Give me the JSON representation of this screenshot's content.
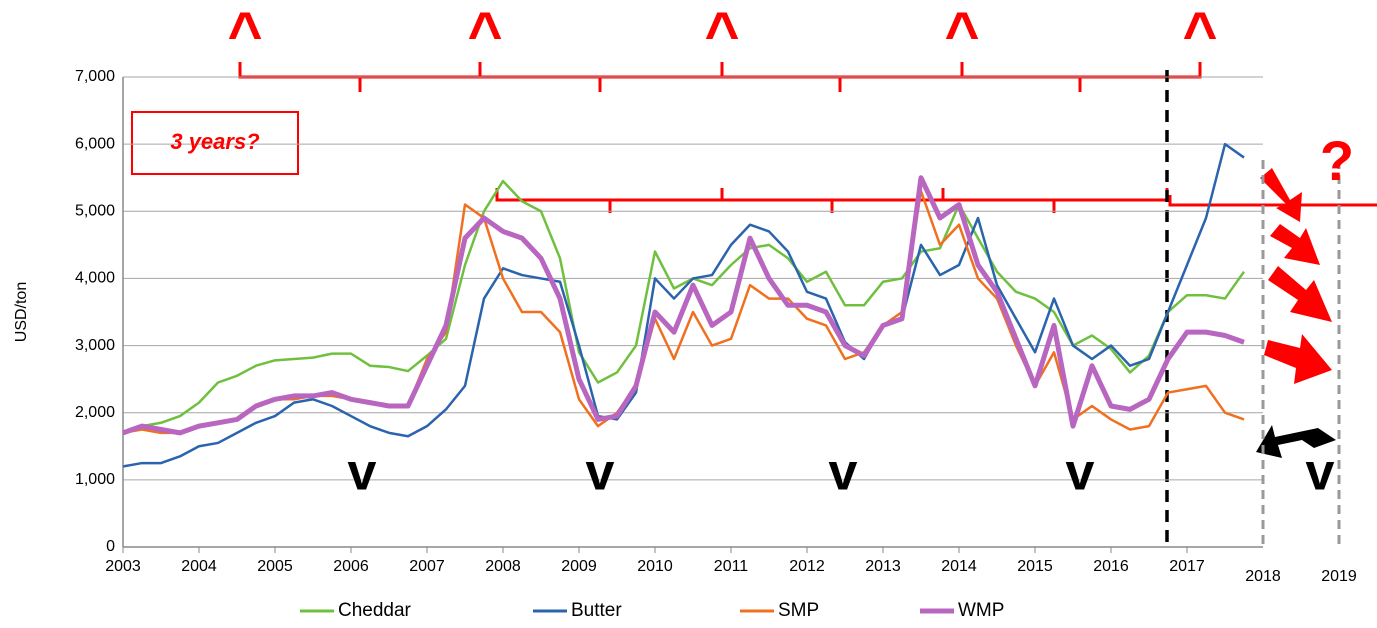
{
  "chart_data": {
    "type": "line",
    "ylabel": "USD/ton",
    "x": [
      2003,
      2003.25,
      2003.5,
      2003.75,
      2004,
      2004.25,
      2004.5,
      2004.75,
      2005,
      2005.25,
      2005.5,
      2005.75,
      2006,
      2006.25,
      2006.5,
      2006.75,
      2007,
      2007.25,
      2007.5,
      2007.75,
      2008,
      2008.25,
      2008.5,
      2008.75,
      2009,
      2009.25,
      2009.5,
      2009.75,
      2010,
      2010.25,
      2010.5,
      2010.75,
      2011,
      2011.25,
      2011.5,
      2011.75,
      2012,
      2012.25,
      2012.5,
      2012.75,
      2013,
      2013.25,
      2013.5,
      2013.75,
      2014,
      2014.25,
      2014.5,
      2014.75,
      2015,
      2015.25,
      2015.5,
      2015.75,
      2016,
      2016.25,
      2016.5,
      2016.75,
      2017,
      2017.25,
      2017.5,
      2017.75
    ],
    "series": [
      {
        "name": "Cheddar",
        "color": "#70c040",
        "values": [
          1700,
          1800,
          1850,
          1950,
          2150,
          2450,
          2550,
          2700,
          2780,
          2800,
          2820,
          2880,
          2880,
          2700,
          2680,
          2620,
          2850,
          3100,
          4200,
          5000,
          5450,
          5150,
          5000,
          4300,
          2900,
          2450,
          2600,
          3000,
          4400,
          3850,
          4000,
          3900,
          4200,
          4450,
          4500,
          4300,
          3950,
          4100,
          3600,
          3600,
          3950,
          4000,
          4400,
          4450,
          5100,
          4600,
          4100,
          3800,
          3700,
          3500,
          3000,
          3150,
          2950,
          2600,
          2850,
          3500,
          3750,
          3750,
          3700,
          4100
        ]
      },
      {
        "name": "Butter",
        "color": "#2a64ad",
        "values": [
          1200,
          1250,
          1250,
          1350,
          1500,
          1550,
          1700,
          1850,
          1950,
          2150,
          2200,
          2100,
          1950,
          1800,
          1700,
          1650,
          1800,
          2050,
          2400,
          3700,
          4150,
          4050,
          4000,
          3950,
          3000,
          1950,
          1900,
          2300,
          4000,
          3700,
          4000,
          4050,
          4500,
          4800,
          4700,
          4400,
          3800,
          3700,
          3050,
          2800,
          3300,
          3400,
          4500,
          4050,
          4200,
          4900,
          3900,
          3400,
          2900,
          3700,
          3000,
          2800,
          3000,
          2700,
          2800,
          3500,
          4200,
          4900,
          6000,
          5800
        ]
      },
      {
        "name": "SMP",
        "color": "#f07020",
        "values": [
          1700,
          1750,
          1700,
          1700,
          1800,
          1850,
          1900,
          2100,
          2200,
          2200,
          2250,
          2250,
          2200,
          2150,
          2100,
          2100,
          2800,
          3200,
          5100,
          4900,
          4000,
          3500,
          3500,
          3200,
          2200,
          1800,
          2000,
          2400,
          3400,
          2800,
          3500,
          3000,
          3100,
          3900,
          3700,
          3700,
          3400,
          3300,
          2800,
          2900,
          3300,
          3500,
          5300,
          4500,
          4800,
          4000,
          3700,
          3000,
          2400,
          2900,
          1900,
          2100,
          1900,
          1750,
          1800,
          2300,
          2350,
          2400,
          2000,
          1900
        ]
      },
      {
        "name": "WMP",
        "color": "#b866c0",
        "values": [
          1700,
          1800,
          1750,
          1700,
          1800,
          1850,
          1900,
          2100,
          2200,
          2250,
          2250,
          2300,
          2200,
          2150,
          2100,
          2100,
          2700,
          3300,
          4600,
          4900,
          4700,
          4600,
          4300,
          3700,
          2500,
          1900,
          1950,
          2400,
          3500,
          3200,
          3900,
          3300,
          3500,
          4600,
          4000,
          3600,
          3600,
          3500,
          3000,
          2850,
          3300,
          3400,
          5500,
          4900,
          5100,
          4200,
          3800,
          3100,
          2400,
          3300,
          1800,
          2700,
          2100,
          2050,
          2200,
          2800,
          3200,
          3200,
          3150,
          3050
        ]
      }
    ],
    "xlim": [
      2003,
      2019
    ],
    "xticks": [
      2003,
      2004,
      2005,
      2006,
      2007,
      2008,
      2009,
      2010,
      2011,
      2012,
      2013,
      2014,
      2015,
      2016,
      2017
    ],
    "forecast_ticks": [
      2018,
      2019
    ],
    "ylim": [
      0,
      7000
    ],
    "yticks": [
      0,
      {
        "value": 1000,
        "label": "1,000"
      },
      {
        "value": 2000,
        "label": "2,000"
      },
      {
        "value": 3000,
        "label": "3,000"
      },
      {
        "value": 4000,
        "label": "4,000"
      },
      {
        "value": 5000,
        "label": "5,000"
      },
      {
        "value": 6000,
        "label": "6,000"
      },
      {
        "value": 7000,
        "label": "7,000"
      }
    ],
    "grid": true,
    "legend": "bottom",
    "annotations": {
      "box": "3 years?",
      "question": "?",
      "peaks": [
        "^",
        "^",
        "^",
        "^",
        "^"
      ],
      "troughs": [
        "v",
        "v",
        "v",
        "v",
        "v"
      ]
    }
  }
}
